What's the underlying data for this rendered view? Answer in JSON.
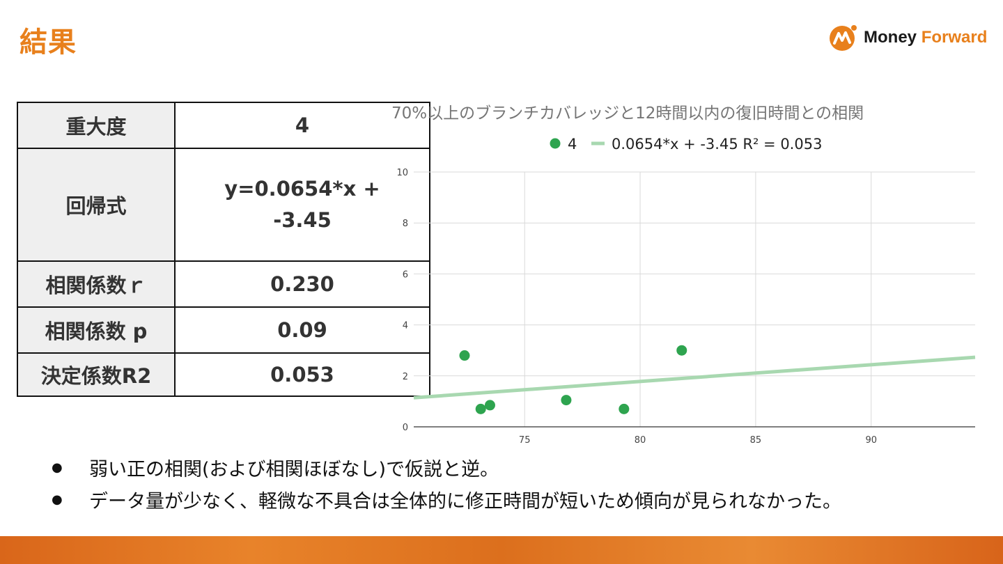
{
  "slide": {
    "title": "結果",
    "logo": {
      "word1": "Money",
      "word2": "Forward"
    }
  },
  "table": [
    {
      "key": "重大度",
      "value": "4"
    },
    {
      "key": "回帰式",
      "value": "y=0.0654*x + -3.45"
    },
    {
      "key": "相関係数ｒ",
      "value": "0.230"
    },
    {
      "key": "相関係数 p",
      "value": "0.09"
    },
    {
      "key": "決定係数R2",
      "value": "0.053"
    }
  ],
  "bullets": [
    "弱い正の相関(および相関ほぼなし)で仮説と逆。",
    "データ量が少なく、軽微な不具合は全体的に修正時間が短いため傾向が見られなかった。"
  ],
  "chart_data": {
    "type": "scatter",
    "title": "70%以上のブランチカバレッジと12時間以内の復旧時間との相関",
    "series": [
      {
        "name": "4",
        "color": "#2ea44f",
        "points": [
          {
            "x": 72.4,
            "y": 2.8
          },
          {
            "x": 73.1,
            "y": 0.7
          },
          {
            "x": 73.5,
            "y": 0.85
          },
          {
            "x": 76.8,
            "y": 1.05
          },
          {
            "x": 79.3,
            "y": 0.7
          },
          {
            "x": 81.8,
            "y": 3.0
          }
        ]
      }
    ],
    "trendline": {
      "label": "0.0654*x + -3.45 R² = 0.053",
      "slope": 0.0654,
      "intercept": -3.45,
      "x_range": [
        70.2,
        94.5
      ],
      "color": "#a8d8b0"
    },
    "xlim": [
      70.2,
      94.5
    ],
    "ylim": [
      0,
      10
    ],
    "x_ticks": [
      75,
      80,
      85,
      90
    ],
    "y_ticks": [
      0,
      2,
      4,
      6,
      8,
      10
    ],
    "grid": true,
    "legend_position": "top-center"
  }
}
